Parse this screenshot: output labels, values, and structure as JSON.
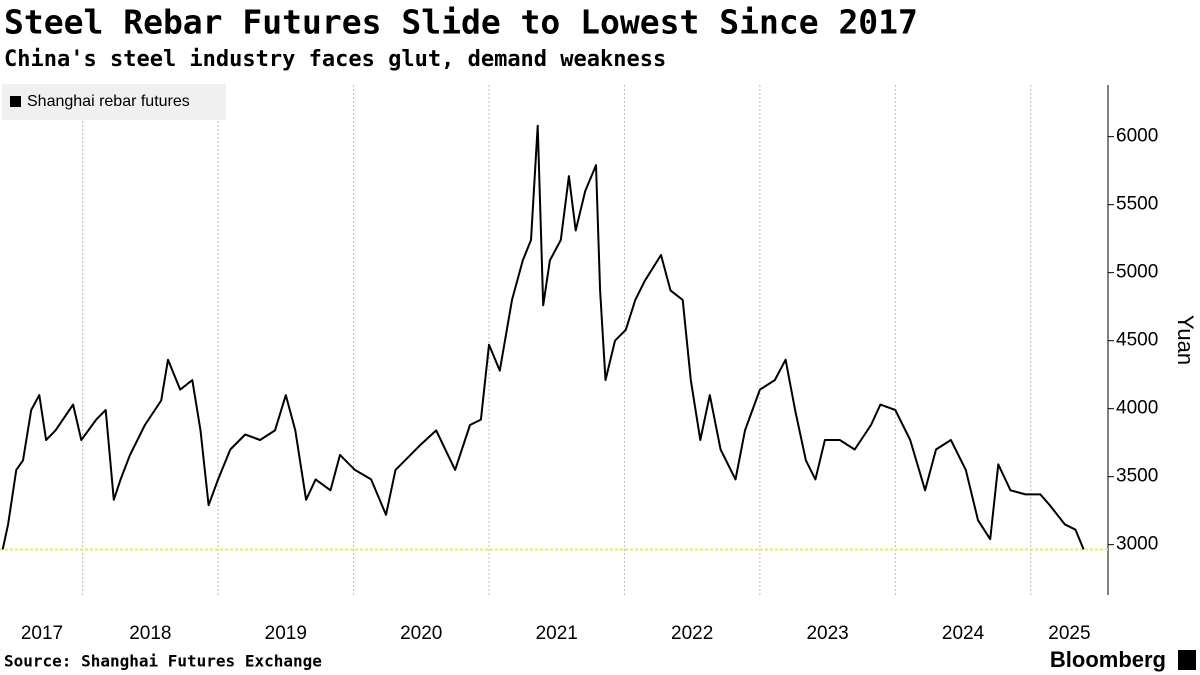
{
  "chart_data": {
    "type": "line",
    "title": "Steel Rebar Futures Slide to Lowest Since 2017",
    "subtitle": "China's steel industry faces glut, demand weakness",
    "source": "Source: Shanghai Futures Exchange",
    "brand": "Bloomberg",
    "y_label": "Yuan",
    "x": [
      2017.41,
      2017.45,
      2017.51,
      2017.56,
      2017.62,
      2017.68,
      2017.73,
      2017.8,
      2017.93,
      2017.99,
      2018.1,
      2018.17,
      2018.23,
      2018.28,
      2018.35,
      2018.46,
      2018.58,
      2018.63,
      2018.72,
      2018.81,
      2018.87,
      2018.93,
      2019.0,
      2019.09,
      2019.2,
      2019.31,
      2019.42,
      2019.5,
      2019.57,
      2019.65,
      2019.72,
      2019.83,
      2019.9,
      2020.01,
      2020.13,
      2020.24,
      2020.31,
      2020.38,
      2020.49,
      2020.61,
      2020.75,
      2020.86,
      2020.94,
      2021.0,
      2021.08,
      2021.17,
      2021.25,
      2021.31,
      2021.36,
      2021.4,
      2021.45,
      2021.53,
      2021.59,
      2021.64,
      2021.71,
      2021.79,
      2021.82,
      2021.86,
      2021.93,
      2022.01,
      2022.08,
      2022.15,
      2022.27,
      2022.34,
      2022.43,
      2022.49,
      2022.56,
      2022.63,
      2022.71,
      2022.82,
      2022.89,
      2023.0,
      2023.11,
      2023.19,
      2023.26,
      2023.34,
      2023.41,
      2023.48,
      2023.59,
      2023.7,
      2023.82,
      2023.89,
      2024.0,
      2024.11,
      2024.22,
      2024.3,
      2024.41,
      2024.52,
      2024.61,
      2024.7,
      2024.76,
      2024.85,
      2024.96,
      2025.07,
      2025.14,
      2025.25,
      2025.33,
      2025.39
    ],
    "series": [
      {
        "name": "Shanghai rebar futures",
        "color": "#000000",
        "values": [
          2965,
          3150,
          3550,
          3620,
          3990,
          4100,
          3770,
          3840,
          4030,
          3770,
          3920,
          3990,
          3330,
          3480,
          3660,
          3880,
          4060,
          4360,
          4140,
          4210,
          3840,
          3290,
          3480,
          3700,
          3810,
          3770,
          3840,
          4100,
          3840,
          3330,
          3480,
          3400,
          3660,
          3550,
          3480,
          3220,
          3550,
          3620,
          3730,
          3840,
          3550,
          3880,
          3920,
          4470,
          4280,
          4800,
          5090,
          5240,
          6080,
          4760,
          5090,
          5240,
          5710,
          5310,
          5600,
          5790,
          4870,
          4210,
          4500,
          4580,
          4800,
          4940,
          5130,
          4870,
          4800,
          4210,
          3770,
          4100,
          3700,
          3480,
          3840,
          4140,
          4210,
          4360,
          3990,
          3620,
          3480,
          3770,
          3770,
          3700,
          3880,
          4030,
          3990,
          3770,
          3400,
          3700,
          3770,
          3550,
          3180,
          3040,
          3590,
          3400,
          3370,
          3370,
          3290,
          3150,
          3110,
          2965
        ]
      }
    ],
    "xlim": [
      2017.39,
      2025.57
    ],
    "xticks": [
      2017,
      2018,
      2019,
      2020,
      2021,
      2022,
      2023,
      2024,
      2025
    ],
    "ylim": [
      2630,
      6380
    ],
    "yticks": [
      3000,
      3500,
      4000,
      4500,
      5000,
      5500,
      6000
    ],
    "grid": "x",
    "hline": {
      "value": 2965,
      "color": "#f2e94e"
    },
    "legend": "top-left"
  }
}
